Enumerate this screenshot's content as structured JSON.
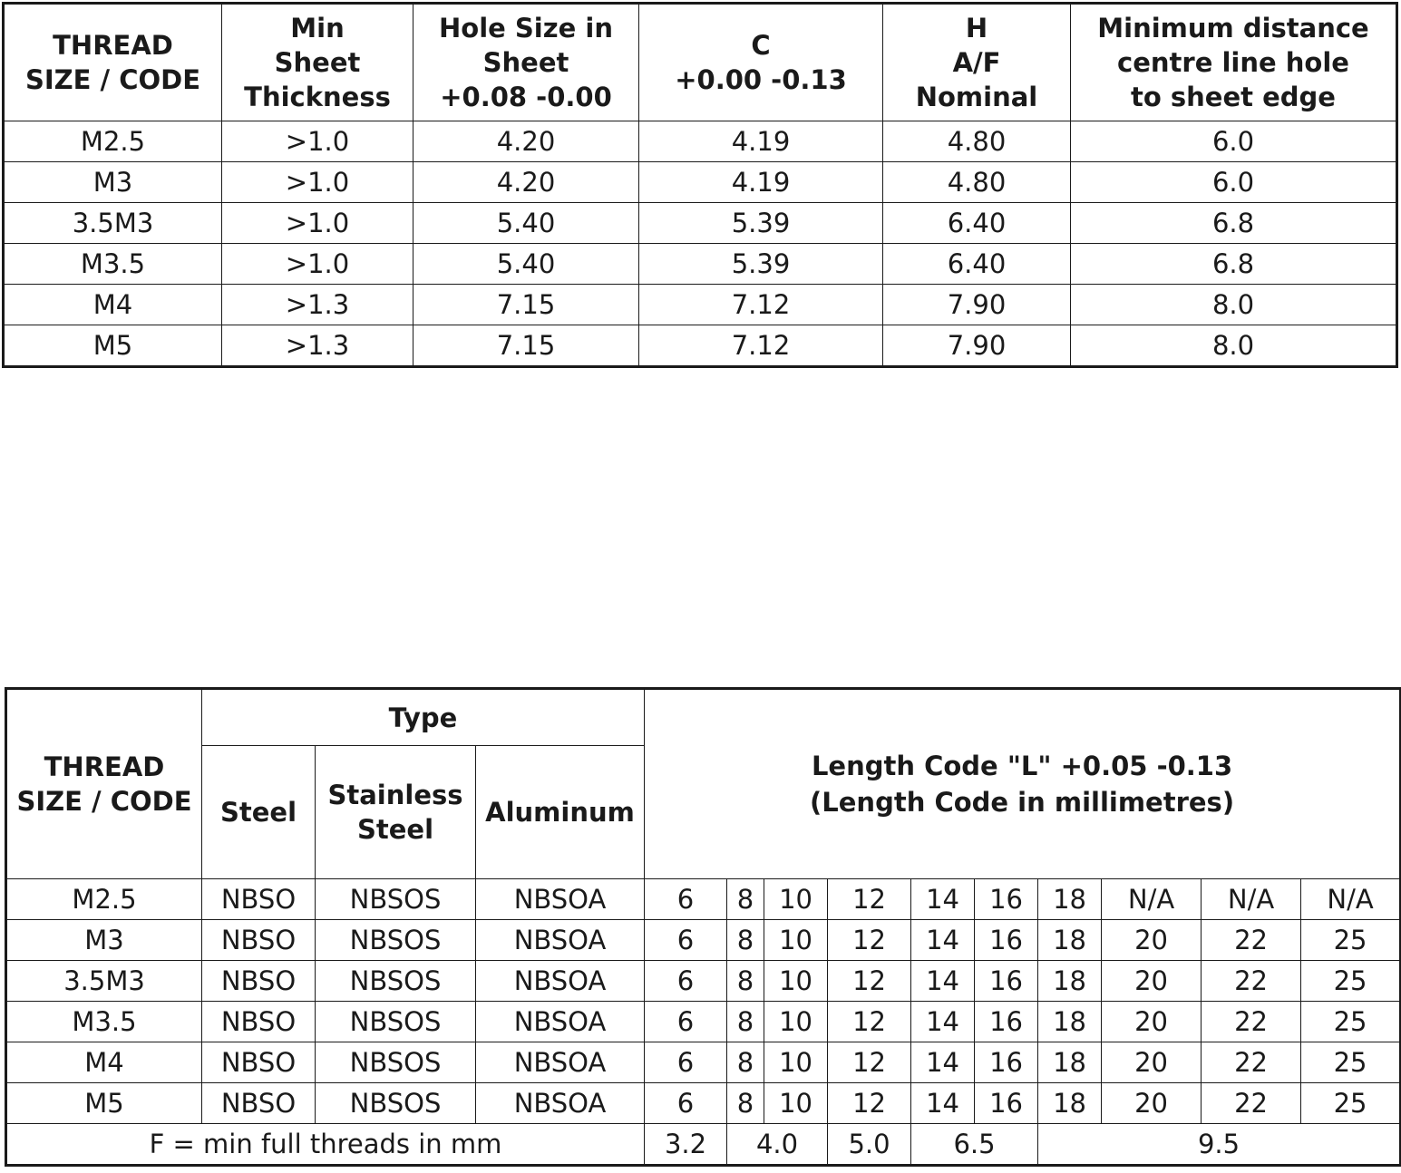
{
  "table1": {
    "headers": [
      [
        "THREAD",
        "SIZE / CODE"
      ],
      [
        "Min",
        "Sheet",
        "Thickness"
      ],
      [
        "Hole Size in",
        "Sheet",
        "+0.08 -0.00"
      ],
      [
        "C",
        "+0.00 -0.13"
      ],
      [
        "H",
        "A/F",
        "Nominal"
      ],
      [
        "Minimum distance",
        "centre line hole",
        "to sheet edge"
      ]
    ],
    "rows": [
      [
        "M2.5",
        ">1.0",
        "4.20",
        "4.19",
        "4.80",
        "6.0"
      ],
      [
        "M3",
        ">1.0",
        "4.20",
        "4.19",
        "4.80",
        "6.0"
      ],
      [
        "3.5M3",
        ">1.0",
        "5.40",
        "5.39",
        "6.40",
        "6.8"
      ],
      [
        "M3.5",
        ">1.0",
        "5.40",
        "5.39",
        "6.40",
        "6.8"
      ],
      [
        "M4",
        ">1.3",
        "7.15",
        "7.12",
        "7.90",
        "8.0"
      ],
      [
        "M5",
        ">1.3",
        "7.15",
        "7.12",
        "7.90",
        "8.0"
      ]
    ]
  },
  "table2": {
    "thread_header": [
      "THREAD",
      "SIZE / CODE"
    ],
    "type_header": "Type",
    "type_columns": [
      [
        "Steel"
      ],
      [
        "Stainless",
        "Steel"
      ],
      [
        "Aluminum"
      ]
    ],
    "length_header": [
      "Length Code \"L\" +0.05 -0.13",
      "(Length Code in millimetres)"
    ],
    "rows": [
      [
        "M2.5",
        "NBSO",
        "NBSOS",
        "NBSOA",
        "6",
        "8",
        "10",
        "12",
        "14",
        "16",
        "18",
        "N/A",
        "N/A",
        "N/A"
      ],
      [
        "M3",
        "NBSO",
        "NBSOS",
        "NBSOA",
        "6",
        "8",
        "10",
        "12",
        "14",
        "16",
        "18",
        "20",
        "22",
        "25"
      ],
      [
        "3.5M3",
        "NBSO",
        "NBSOS",
        "NBSOA",
        "6",
        "8",
        "10",
        "12",
        "14",
        "16",
        "18",
        "20",
        "22",
        "25"
      ],
      [
        "M3.5",
        "NBSO",
        "NBSOS",
        "NBSOA",
        "6",
        "8",
        "10",
        "12",
        "14",
        "16",
        "18",
        "20",
        "22",
        "25"
      ],
      [
        "M4",
        "NBSO",
        "NBSOS",
        "NBSOA",
        "6",
        "8",
        "10",
        "12",
        "14",
        "16",
        "18",
        "20",
        "22",
        "25"
      ],
      [
        "M5",
        "NBSO",
        "NBSOS",
        "NBSOA",
        "6",
        "8",
        "10",
        "12",
        "14",
        "16",
        "18",
        "20",
        "22",
        "25"
      ]
    ],
    "footer": {
      "label": "F = min full threads in mm",
      "values": [
        "3.2",
        "4.0",
        "5.0",
        "6.5",
        "9.5"
      ]
    }
  }
}
